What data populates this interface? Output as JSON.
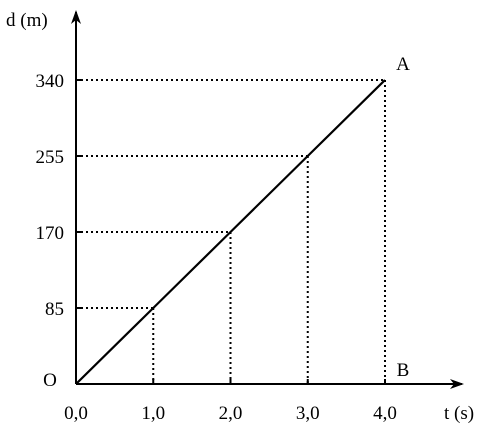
{
  "chart_data": {
    "type": "line",
    "title": "",
    "xlabel": "t (s)",
    "ylabel": "d (m)",
    "xlim": [
      0,
      4
    ],
    "ylim": [
      0,
      340
    ],
    "x_ticks": [
      0,
      1,
      2,
      3,
      4
    ],
    "x_tick_labels": [
      "0,0",
      "1,0",
      "2,0",
      "3,0",
      "4,0"
    ],
    "y_ticks": [
      85,
      170,
      255,
      340
    ],
    "y_tick_labels": [
      "85",
      "170",
      "255",
      "340"
    ],
    "series": [
      {
        "x": [
          0,
          1,
          2,
          3,
          4
        ],
        "y": [
          0,
          85,
          170,
          255,
          340
        ]
      }
    ],
    "guides": [
      {
        "x": 1,
        "y": 85
      },
      {
        "x": 2,
        "y": 170
      },
      {
        "x": 3,
        "y": 255
      },
      {
        "x": 4,
        "y": 340
      }
    ],
    "annotations": {
      "origin": {
        "label": "O",
        "x": 0,
        "y": 0
      },
      "point_a": {
        "label": "A",
        "x": 4,
        "y": 340
      },
      "point_b": {
        "label": "B",
        "x": 4,
        "y": 0
      }
    },
    "grid": false,
    "line_color": "#000000",
    "guide_style": "dotted"
  }
}
